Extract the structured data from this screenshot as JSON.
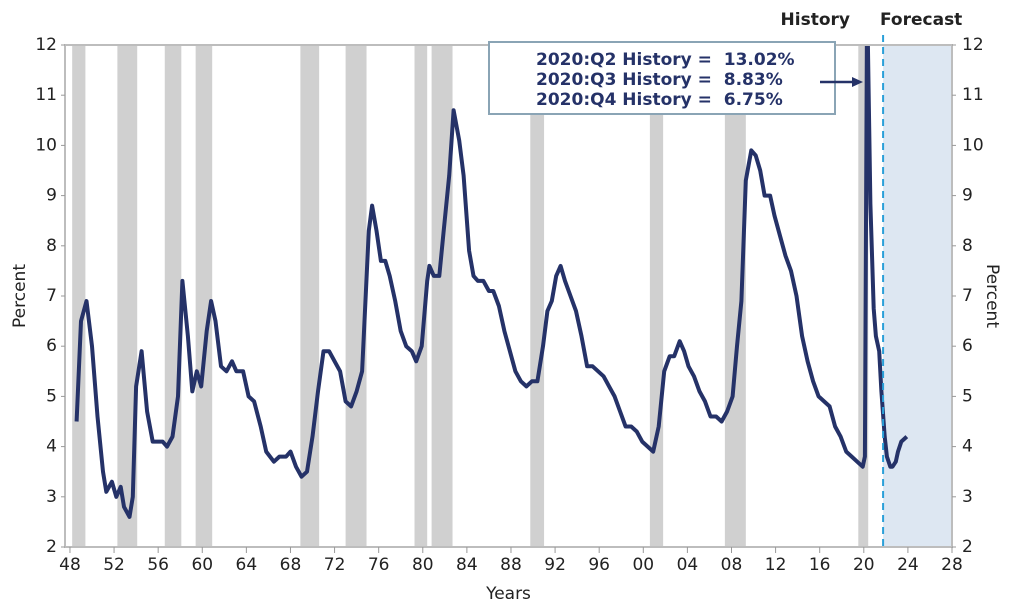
{
  "chart_data": {
    "type": "line",
    "title_left": "History",
    "title_right": "Forecast",
    "xlabel": "Years",
    "ylabel": "Percent",
    "y2label": "Percent",
    "annotations": [
      "2020:Q2 History =  13.02%",
      "2020:Q3 History =  8.83%",
      "2020:Q4 History =  6.75%"
    ],
    "color": "#253268",
    "recession_color": "#d0d0d0",
    "forecast_color": "#dde7f2",
    "forecast_line_color": "#2a9fd8",
    "forecast_start": 2021.75,
    "recessions": [
      [
        1948.2,
        1949.4
      ],
      [
        1952.3,
        1954.1
      ],
      [
        1956.6,
        1958.1
      ],
      [
        1959.4,
        1960.9
      ],
      [
        1968.9,
        1970.6
      ],
      [
        1973.0,
        1974.9
      ],
      [
        1979.25,
        1980.4
      ],
      [
        1980.8,
        1982.7
      ],
      [
        1989.75,
        1991.0
      ],
      [
        2000.6,
        2001.8
      ],
      [
        2007.4,
        2009.3
      ],
      [
        2019.5,
        2020.4
      ]
    ],
    "x": [
      1948.6,
      1949.0,
      1949.5,
      1950.0,
      1950.5,
      1951.0,
      1951.3,
      1951.8,
      1952.2,
      1952.6,
      1952.9,
      1953.4,
      1953.7,
      1954.0,
      1954.5,
      1955.0,
      1955.5,
      1956.0,
      1956.4,
      1956.8,
      1957.3,
      1957.8,
      1958.2,
      1958.7,
      1959.1,
      1959.5,
      1959.9,
      1960.4,
      1960.8,
      1961.2,
      1961.7,
      1962.2,
      1962.7,
      1963.1,
      1963.7,
      1964.2,
      1964.7,
      1965.3,
      1965.8,
      1966.5,
      1967.0,
      1967.6,
      1968.0,
      1968.5,
      1969.0,
      1969.5,
      1970.0,
      1970.5,
      1971.0,
      1971.5,
      1972.0,
      1972.5,
      1973.0,
      1973.5,
      1974.0,
      1974.5,
      1975.1,
      1975.4,
      1975.8,
      1976.2,
      1976.6,
      1977.0,
      1977.5,
      1978.0,
      1978.5,
      1979.0,
      1979.4,
      1979.9,
      1980.4,
      1980.6,
      1981.0,
      1981.5,
      1981.9,
      1982.4,
      1982.8,
      1983.3,
      1983.7,
      1984.2,
      1984.6,
      1985.0,
      1985.5,
      1986.0,
      1986.4,
      1986.9,
      1987.4,
      1987.9,
      1988.4,
      1988.9,
      1989.4,
      1989.9,
      1990.4,
      1990.9,
      1991.3,
      1991.7,
      1992.1,
      1992.5,
      1992.9,
      1993.4,
      1993.9,
      1994.4,
      1994.9,
      1995.4,
      1995.9,
      1996.4,
      1996.9,
      1997.4,
      1997.9,
      1998.4,
      1998.9,
      1999.4,
      1999.9,
      2000.4,
      2000.9,
      2001.4,
      2001.9,
      2002.4,
      2002.8,
      2003.3,
      2003.7,
      2004.1,
      2004.6,
      2005.1,
      2005.6,
      2006.1,
      2006.6,
      2007.1,
      2007.6,
      2008.1,
      2008.5,
      2008.9,
      2009.3,
      2009.8,
      2010.2,
      2010.6,
      2011.0,
      2011.5,
      2011.9,
      2012.4,
      2012.9,
      2013.4,
      2013.9,
      2014.4,
      2014.9,
      2015.4,
      2015.9,
      2016.4,
      2016.9,
      2017.4,
      2017.9,
      2018.4,
      2018.9,
      2019.4,
      2019.9,
      2020.1,
      2020.3,
      2020.6,
      2020.9,
      2021.1,
      2021.4,
      2021.6,
      2021.9,
      2022.1,
      2022.4,
      2022.6,
      2022.9,
      2023.1,
      2023.4,
      2023.9
    ],
    "values": [
      4.5,
      6.5,
      6.9,
      6.0,
      4.6,
      3.5,
      3.1,
      3.3,
      3.0,
      3.2,
      2.8,
      2.6,
      3.0,
      5.2,
      5.9,
      4.7,
      4.1,
      4.1,
      4.1,
      4.0,
      4.2,
      5.0,
      7.3,
      6.2,
      5.1,
      5.5,
      5.2,
      6.3,
      6.9,
      6.5,
      5.6,
      5.5,
      5.7,
      5.5,
      5.5,
      5.0,
      4.9,
      4.4,
      3.9,
      3.7,
      3.8,
      3.8,
      3.9,
      3.6,
      3.4,
      3.5,
      4.2,
      5.1,
      5.9,
      5.9,
      5.7,
      5.5,
      4.9,
      4.8,
      5.1,
      5.5,
      8.3,
      8.8,
      8.3,
      7.7,
      7.7,
      7.4,
      6.9,
      6.3,
      6.0,
      5.9,
      5.7,
      6.0,
      7.3,
      7.6,
      7.4,
      7.4,
      8.3,
      9.4,
      10.7,
      10.1,
      9.4,
      7.9,
      7.4,
      7.3,
      7.3,
      7.1,
      7.1,
      6.8,
      6.3,
      5.9,
      5.5,
      5.3,
      5.2,
      5.3,
      5.3,
      6.0,
      6.7,
      6.9,
      7.4,
      7.6,
      7.3,
      7.0,
      6.7,
      6.2,
      5.6,
      5.6,
      5.5,
      5.4,
      5.2,
      5.0,
      4.7,
      4.4,
      4.4,
      4.3,
      4.1,
      4.0,
      3.9,
      4.4,
      5.5,
      5.8,
      5.8,
      6.1,
      5.9,
      5.6,
      5.4,
      5.1,
      4.9,
      4.6,
      4.6,
      4.5,
      4.7,
      5.0,
      6.0,
      6.9,
      9.3,
      9.9,
      9.8,
      9.5,
      9.0,
      9.0,
      8.6,
      8.2,
      7.8,
      7.5,
      7.0,
      6.2,
      5.7,
      5.3,
      5.0,
      4.9,
      4.8,
      4.4,
      4.2,
      3.9,
      3.8,
      3.7,
      3.6,
      3.8,
      13.02,
      8.83,
      6.75,
      6.2,
      5.9,
      5.1,
      4.2,
      3.8,
      3.6,
      3.6,
      3.7,
      3.9,
      4.1,
      4.2
    ],
    "xlim": [
      1947.55,
      2028
    ],
    "xticks": [
      {
        "value": 1948,
        "label": "48"
      },
      {
        "value": 1952,
        "label": "52"
      },
      {
        "value": 1956,
        "label": "56"
      },
      {
        "value": 1960,
        "label": "60"
      },
      {
        "value": 1964,
        "label": "64"
      },
      {
        "value": 1968,
        "label": "68"
      },
      {
        "value": 1972,
        "label": "72"
      },
      {
        "value": 1976,
        "label": "76"
      },
      {
        "value": 1980,
        "label": "80"
      },
      {
        "value": 1984,
        "label": "84"
      },
      {
        "value": 1988,
        "label": "88"
      },
      {
        "value": 1992,
        "label": "92"
      },
      {
        "value": 1996,
        "label": "96"
      },
      {
        "value": 2000,
        "label": "00"
      },
      {
        "value": 2004,
        "label": "04"
      },
      {
        "value": 2008,
        "label": "08"
      },
      {
        "value": 2012,
        "label": "12"
      },
      {
        "value": 2016,
        "label": "16"
      },
      {
        "value": 2020,
        "label": "20"
      },
      {
        "value": 2024,
        "label": "24"
      },
      {
        "value": 2028,
        "label": "28"
      }
    ],
    "ylim": [
      2,
      12
    ],
    "yticks": [
      2,
      3,
      4,
      5,
      6,
      7,
      8,
      9,
      10,
      11,
      12
    ],
    "y2lim": [
      2,
      12
    ],
    "y2ticks": [
      2,
      3,
      4,
      5,
      6,
      7,
      8,
      9,
      10,
      11,
      12
    ]
  }
}
